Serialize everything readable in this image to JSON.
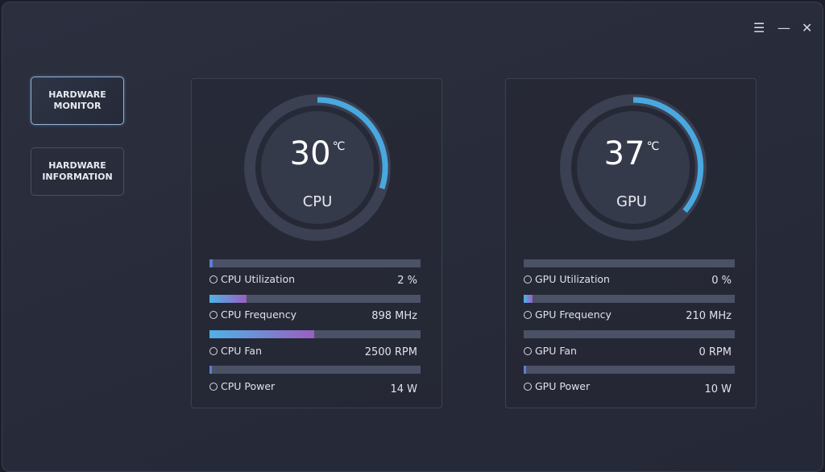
{
  "sidebar": {
    "buttons": [
      "HARDWARE MONITOR",
      "HARDWARE INFORMATION"
    ]
  },
  "panels": [
    {
      "temperature": 30,
      "unit": "℃",
      "label": "CPU",
      "metrics": [
        {
          "name": "CPU Utilization",
          "value": "2 %"
        },
        {
          "name": "CPU Frequency",
          "value": "898 MHz"
        },
        {
          "name": "CPU Fan",
          "value": "2500 RPM"
        },
        {
          "name": "CPU Power",
          "value": "14 W"
        }
      ]
    },
    {
      "temperature": 37,
      "unit": "℃",
      "label": "GPU",
      "metrics": [
        {
          "name": "GPU Utilization",
          "value": "0 %"
        },
        {
          "name": "GPU Frequency",
          "value": "210 MHz"
        },
        {
          "name": "GPU Fan",
          "value": "0 RPM"
        },
        {
          "name": "GPU Power",
          "value": "10 W"
        }
      ]
    }
  ]
}
